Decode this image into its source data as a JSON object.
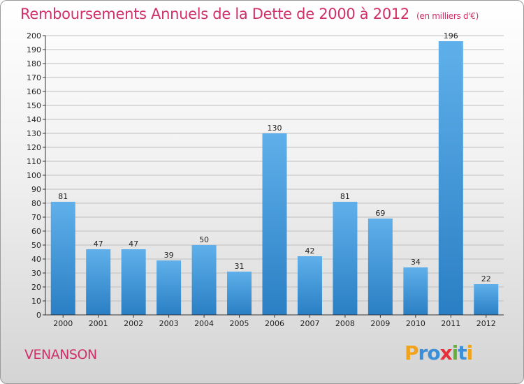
{
  "title": "Remboursements Annuels de la Dette de 2000 à 2012",
  "subtitle": "(en milliers d'€)",
  "town": "VENANSON",
  "logo": {
    "text": "Proxiti"
  },
  "colors": {
    "title": "#d0306a",
    "bar_top": "#5fb0ea",
    "bar_bottom": "#2a7fc4",
    "grid": "#bfbfbf"
  },
  "chart_data": {
    "type": "bar",
    "categories": [
      "2000",
      "2001",
      "2002",
      "2003",
      "2004",
      "2005",
      "2006",
      "2007",
      "2008",
      "2009",
      "2010",
      "2011",
      "2012"
    ],
    "values": [
      81,
      47,
      47,
      39,
      50,
      31,
      130,
      42,
      81,
      69,
      34,
      196,
      22
    ],
    "ylim": [
      0,
      200
    ],
    "ytick_step": 10,
    "grid": true
  }
}
